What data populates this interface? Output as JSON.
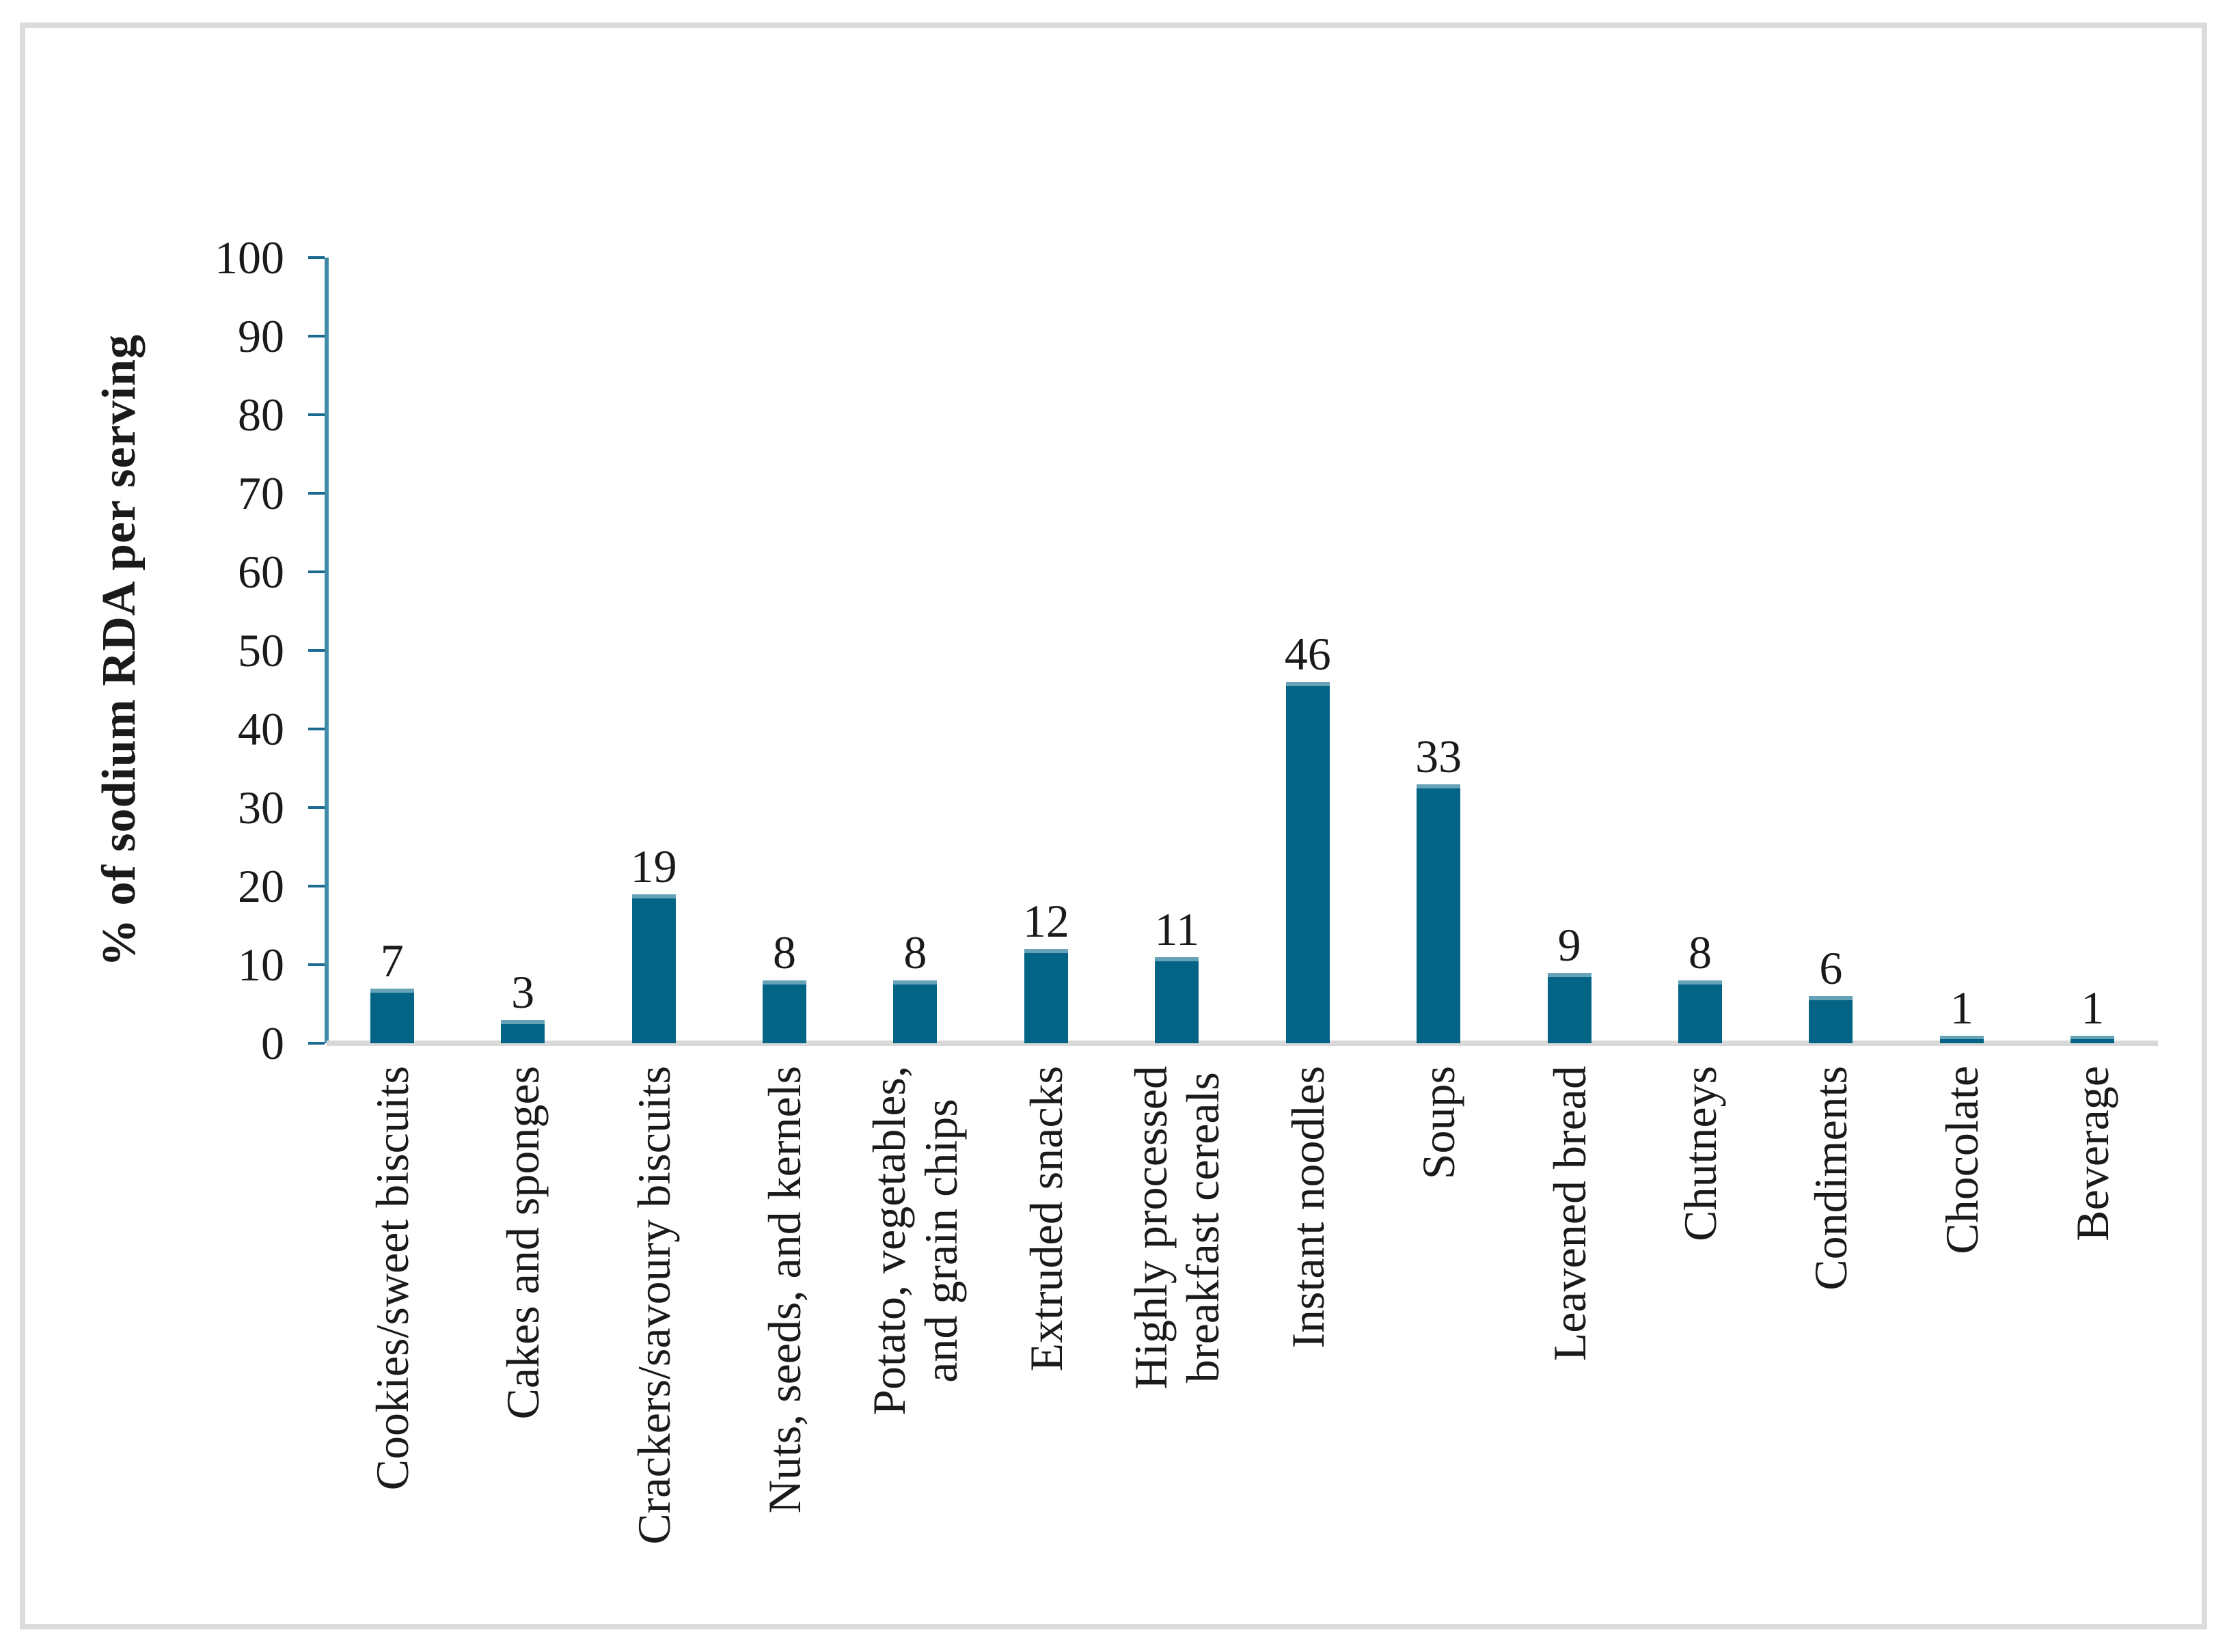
{
  "figure": {
    "background": "#ffffff",
    "border_color": "#dcdcdc"
  },
  "chart_data": {
    "type": "bar",
    "title": "",
    "xlabel": "",
    "ylabel": "% of sodium RDA per serving",
    "categories": [
      "Cookies/sweet biscuits",
      "Cakes and sponges",
      "Crackers/savoury biscuits",
      "Nuts, seeds, and kernels",
      "Potato, vegetables,\nand grain chips",
      "Extruded snacks",
      "Highly processed\nbreakfast cereals",
      "Instant noodles",
      "Soups",
      "Leavened bread",
      "Chutneys",
      "Condiments",
      "Chocolate",
      "Beverage"
    ],
    "values": [
      7,
      3,
      19,
      8,
      8,
      12,
      11,
      46,
      33,
      9,
      8,
      6,
      1,
      1
    ],
    "ylim": [
      0,
      100
    ],
    "yticks": [
      0,
      10,
      20,
      30,
      40,
      50,
      60,
      70,
      80,
      90,
      100
    ],
    "grid": false,
    "legend": false,
    "value_labels_shown": true,
    "bar_color": "#046485",
    "bar_cap_color": "#66a3b8",
    "axis_color": "#3e8baa",
    "tick_color": "#1b6a90",
    "baseline_color": "#d9d9d9",
    "text_color": "#1a1a1a"
  }
}
